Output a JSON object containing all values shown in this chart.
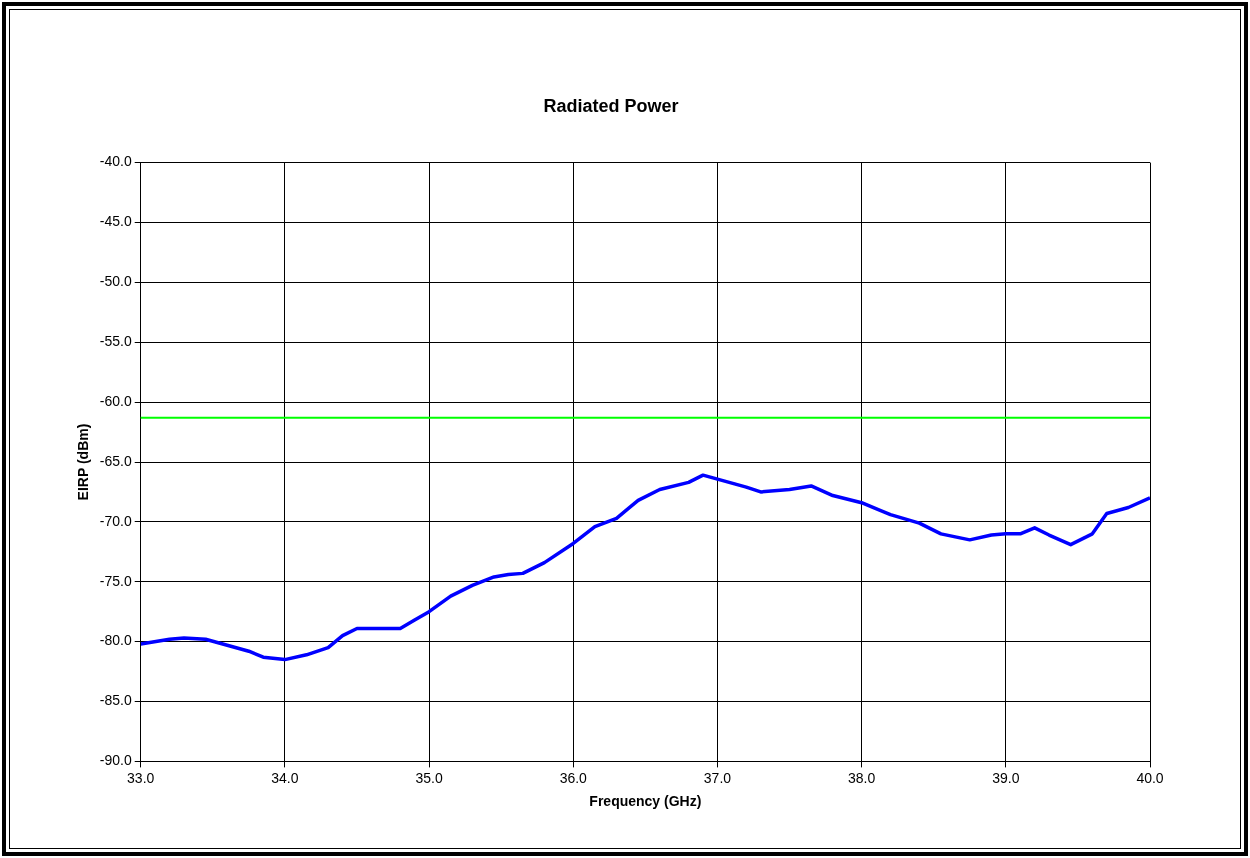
{
  "chart_data": {
    "type": "line",
    "title": "Radiated Power",
    "xlabel": "Frequency (GHz)",
    "ylabel": "EIRP (dBm)",
    "x": [
      33.0,
      33.2,
      33.3,
      33.45,
      33.6,
      33.75,
      33.85,
      34.0,
      34.15,
      34.3,
      34.4,
      34.5,
      34.6,
      34.8,
      34.9,
      35.0,
      35.15,
      35.3,
      35.45,
      35.55,
      35.65,
      35.8,
      36.0,
      36.15,
      36.3,
      36.45,
      36.6,
      36.8,
      36.9,
      37.05,
      37.2,
      37.3,
      37.5,
      37.65,
      37.8,
      38.0,
      38.2,
      38.4,
      38.55,
      38.75,
      38.9,
      39.0,
      39.1,
      39.2,
      39.3,
      39.45,
      39.6,
      39.7,
      39.85,
      40.0
    ],
    "series": [
      {
        "color": "#0000ff",
        "values": [
          -80.2,
          -79.8,
          -79.7,
          -79.8,
          -80.3,
          -80.8,
          -81.3,
          -81.5,
          -81.1,
          -80.5,
          -79.5,
          -78.9,
          -78.9,
          -78.9,
          -78.2,
          -77.5,
          -76.2,
          -75.3,
          -74.6,
          -74.4,
          -74.3,
          -73.4,
          -71.8,
          -70.4,
          -69.7,
          -68.2,
          -67.3,
          -66.7,
          -66.1,
          -66.6,
          -67.1,
          -67.5,
          -67.3,
          -67.0,
          -67.8,
          -68.4,
          -69.4,
          -70.1,
          -71.0,
          -71.5,
          -71.1,
          -71.0,
          -71.0,
          -70.5,
          -71.1,
          -71.9,
          -71.0,
          -69.3,
          -68.8,
          -68.0
        ]
      }
    ],
    "ref_lines": [
      {
        "axis": "y",
        "value": -61.3,
        "color": "#00ff00"
      }
    ],
    "xlim": [
      33,
      40
    ],
    "xticks": [
      {
        "value": 33,
        "label": "33.0"
      },
      {
        "value": 34,
        "label": "34.0"
      },
      {
        "value": 35,
        "label": "35.0"
      },
      {
        "value": 36,
        "label": "36.0"
      },
      {
        "value": 37,
        "label": "37.0"
      },
      {
        "value": 38,
        "label": "38.0"
      },
      {
        "value": 39,
        "label": "39.0"
      },
      {
        "value": 40,
        "label": "40.0"
      }
    ],
    "ylim": [
      -90,
      -40
    ],
    "yticks": [
      {
        "value": -90,
        "label": "-90.0"
      },
      {
        "value": -85,
        "label": "-85.0"
      },
      {
        "value": -80,
        "label": "-80.0"
      },
      {
        "value": -75,
        "label": "-75.0"
      },
      {
        "value": -70,
        "label": "-70.0"
      },
      {
        "value": -65,
        "label": "-65.0"
      },
      {
        "value": -60,
        "label": "-60.0"
      },
      {
        "value": -55,
        "label": "-55.0"
      },
      {
        "value": -50,
        "label": "-50.0"
      },
      {
        "value": -45,
        "label": "-45.0"
      },
      {
        "value": -40,
        "label": "-40.0"
      }
    ],
    "grid": true,
    "legend": false,
    "marker": "none",
    "line_style": "solid"
  }
}
